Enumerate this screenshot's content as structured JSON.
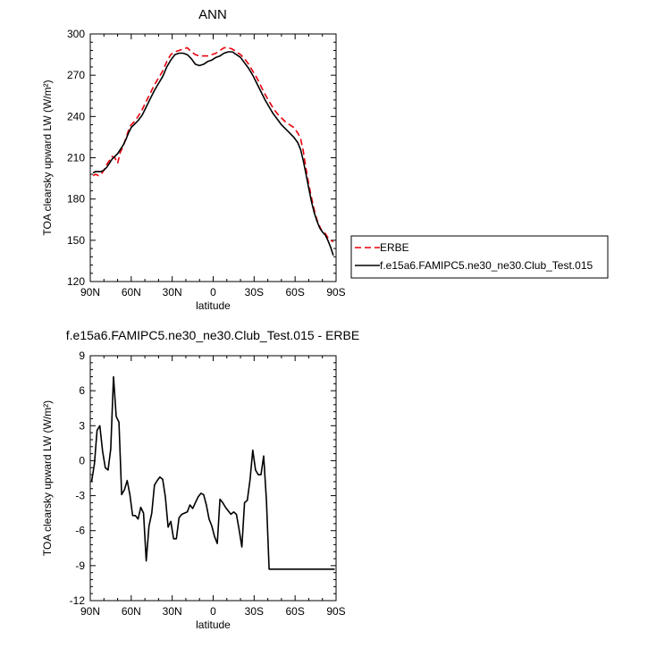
{
  "chart_data": [
    {
      "type": "line",
      "title": "ANN",
      "xlabel": "latitude",
      "ylabel": "TOA clearsky upward LW (W/m²)",
      "xlim": [
        -90,
        90
      ],
      "ylim": [
        120,
        300
      ],
      "xticks": [
        -90,
        -60,
        -30,
        0,
        30,
        60,
        90
      ],
      "xtick_labels": [
        "90N",
        "60N",
        "30N",
        "0",
        "30S",
        "60S",
        "90S"
      ],
      "yticks": [
        120,
        150,
        180,
        210,
        240,
        270,
        300
      ],
      "ytick_labels": [
        "120",
        "150",
        "180",
        "210",
        "240",
        "270",
        "300"
      ],
      "legend_position": "right",
      "series": [
        {
          "name": "ERBE",
          "color": "#e8000b",
          "style": "dashed",
          "x": [
            -88,
            -86,
            -84,
            -82,
            -80,
            -78,
            -76,
            -74,
            -72,
            -70,
            -68,
            -66,
            -64,
            -62,
            -60,
            -58,
            -55,
            -52,
            -49,
            -46,
            -43,
            -40,
            -37,
            -34,
            -31,
            -28,
            -25,
            -22,
            -19,
            -16,
            -13,
            -10,
            -7,
            -4,
            -1,
            2,
            5,
            8,
            11,
            14,
            17,
            20,
            23,
            26,
            29,
            32,
            35,
            38,
            41,
            44,
            47,
            50,
            53,
            56,
            59,
            62,
            64,
            66,
            68,
            70,
            72,
            74,
            76,
            78,
            80,
            82,
            84,
            86,
            88
          ],
          "values": [
            197,
            198,
            197,
            198,
            201,
            205,
            208,
            211,
            210,
            206,
            214,
            218,
            224,
            230,
            234,
            236,
            240,
            245,
            251,
            257,
            263,
            268,
            273,
            280,
            285,
            287,
            288,
            289,
            290,
            287,
            285,
            284,
            284,
            284,
            285,
            286,
            288,
            290,
            290,
            289,
            287,
            285,
            282,
            278,
            273,
            268,
            262,
            256,
            251,
            246,
            242,
            239,
            236,
            234,
            232,
            228,
            224,
            215,
            202,
            191,
            181,
            172,
            165,
            160,
            156,
            155,
            152,
            150,
            149
          ]
        },
        {
          "name": "f.e15a6.FAMIPC5.ne30_ne30.Club_Test.015",
          "color": "#000000",
          "style": "solid",
          "x": [
            -88,
            -86,
            -84,
            -82,
            -80,
            -78,
            -76,
            -74,
            -72,
            -70,
            -68,
            -66,
            -64,
            -62,
            -60,
            -58,
            -55,
            -52,
            -49,
            -46,
            -43,
            -40,
            -37,
            -34,
            -31,
            -28,
            -25,
            -22,
            -19,
            -16,
            -13,
            -10,
            -7,
            -4,
            -1,
            2,
            5,
            8,
            11,
            14,
            17,
            20,
            23,
            26,
            29,
            32,
            35,
            38,
            41,
            44,
            47,
            50,
            53,
            56,
            59,
            62,
            64,
            66,
            68,
            70,
            72,
            74,
            76,
            78,
            80,
            82,
            84,
            86,
            88
          ],
          "values": [
            199,
            200,
            200,
            200,
            201,
            203,
            206,
            209,
            211,
            213,
            216,
            219,
            223,
            228,
            232,
            234,
            237,
            241,
            247,
            253,
            259,
            264,
            269,
            276,
            281,
            285,
            286,
            286,
            285,
            282,
            278,
            277,
            278,
            280,
            281,
            283,
            284,
            286,
            287,
            287,
            285,
            283,
            279,
            275,
            270,
            264,
            258,
            252,
            247,
            242,
            238,
            234,
            231,
            228,
            225,
            221,
            216,
            208,
            198,
            188,
            178,
            170,
            164,
            159,
            156,
            154,
            150,
            145,
            139
          ]
        }
      ]
    },
    {
      "type": "line",
      "title": "f.e15a6.FAMIPC5.ne30_ne30.Club_Test.015 - ERBE",
      "xlabel": "latitude",
      "ylabel": "TOA clearsky upward LW (W/m²)",
      "xlim": [
        -90,
        90
      ],
      "ylim": [
        -12,
        9
      ],
      "xticks": [
        -90,
        -60,
        -30,
        0,
        30,
        60,
        90
      ],
      "xtick_labels": [
        "90N",
        "60N",
        "30N",
        "0",
        "30S",
        "60S",
        "90S"
      ],
      "yticks": [
        -12,
        -9,
        -6,
        -3,
        0,
        3,
        6,
        9
      ],
      "ytick_labels": [
        "-12",
        "-9",
        "-6",
        "-3",
        "0",
        "3",
        "6",
        "9"
      ],
      "series": [
        {
          "color": "#000000",
          "style": "solid",
          "x": [
            -89,
            -87,
            -85,
            -83,
            -81,
            -79,
            -77,
            -75,
            -73,
            -71,
            -69,
            -67,
            -65,
            -63,
            -61,
            -59,
            -57,
            -55,
            -53,
            -51,
            -49,
            -47,
            -45,
            -43,
            -41,
            -39,
            -37,
            -35,
            -33,
            -31,
            -29,
            -27,
            -25,
            -23,
            -21,
            -19,
            -17,
            -15,
            -13,
            -11,
            -9,
            -7,
            -5,
            -3,
            -1,
            1,
            3,
            5,
            7,
            9,
            11,
            13,
            15,
            17,
            19,
            21,
            23,
            25,
            27,
            29,
            31,
            33,
            35,
            37,
            39,
            41,
            43,
            45,
            47,
            49,
            51,
            53,
            55,
            57,
            59,
            61,
            63,
            65,
            67,
            69,
            71,
            73,
            75,
            77,
            79,
            81,
            83,
            85,
            87,
            89
          ],
          "values": [
            -1.8,
            -0.3,
            2.6,
            3.0,
            0.8,
            -0.6,
            -0.8,
            1.0,
            7.2,
            3.8,
            3.3,
            -2.9,
            -2.5,
            -1.7,
            -2.9,
            -4.7,
            -4.7,
            -5.0,
            -4.0,
            -4.5,
            -8.6,
            -5.6,
            -4.5,
            -2.1,
            -1.7,
            -1.4,
            -1.6,
            -3.1,
            -5.7,
            -5.2,
            -6.7,
            -6.7,
            -4.9,
            -4.6,
            -4.5,
            -4.4,
            -3.8,
            -4.1,
            -3.6,
            -3.1,
            -2.8,
            -2.9,
            -3.8,
            -5.0,
            -5.6,
            -6.5,
            -7.1,
            -3.3,
            -3.6,
            -4.0,
            -4.3,
            -4.6,
            -4.4,
            -4.6,
            -5.9,
            -7.4,
            -3.6,
            -3.4,
            -1.6,
            0.9,
            -0.8,
            -1.2,
            -1.2,
            0.4,
            -3.4,
            -9.3,
            -9.3,
            -9.3,
            -9.3,
            -9.3,
            -9.3,
            -9.3,
            -9.3,
            -9.3,
            -9.3,
            -9.3,
            -9.3,
            -9.3,
            -9.3,
            -9.3,
            -9.3,
            -9.3,
            -9.3,
            -9.3,
            -9.3,
            -9.3,
            -9.3,
            -9.3,
            -9.3,
            -9.3
          ]
        }
      ]
    }
  ]
}
